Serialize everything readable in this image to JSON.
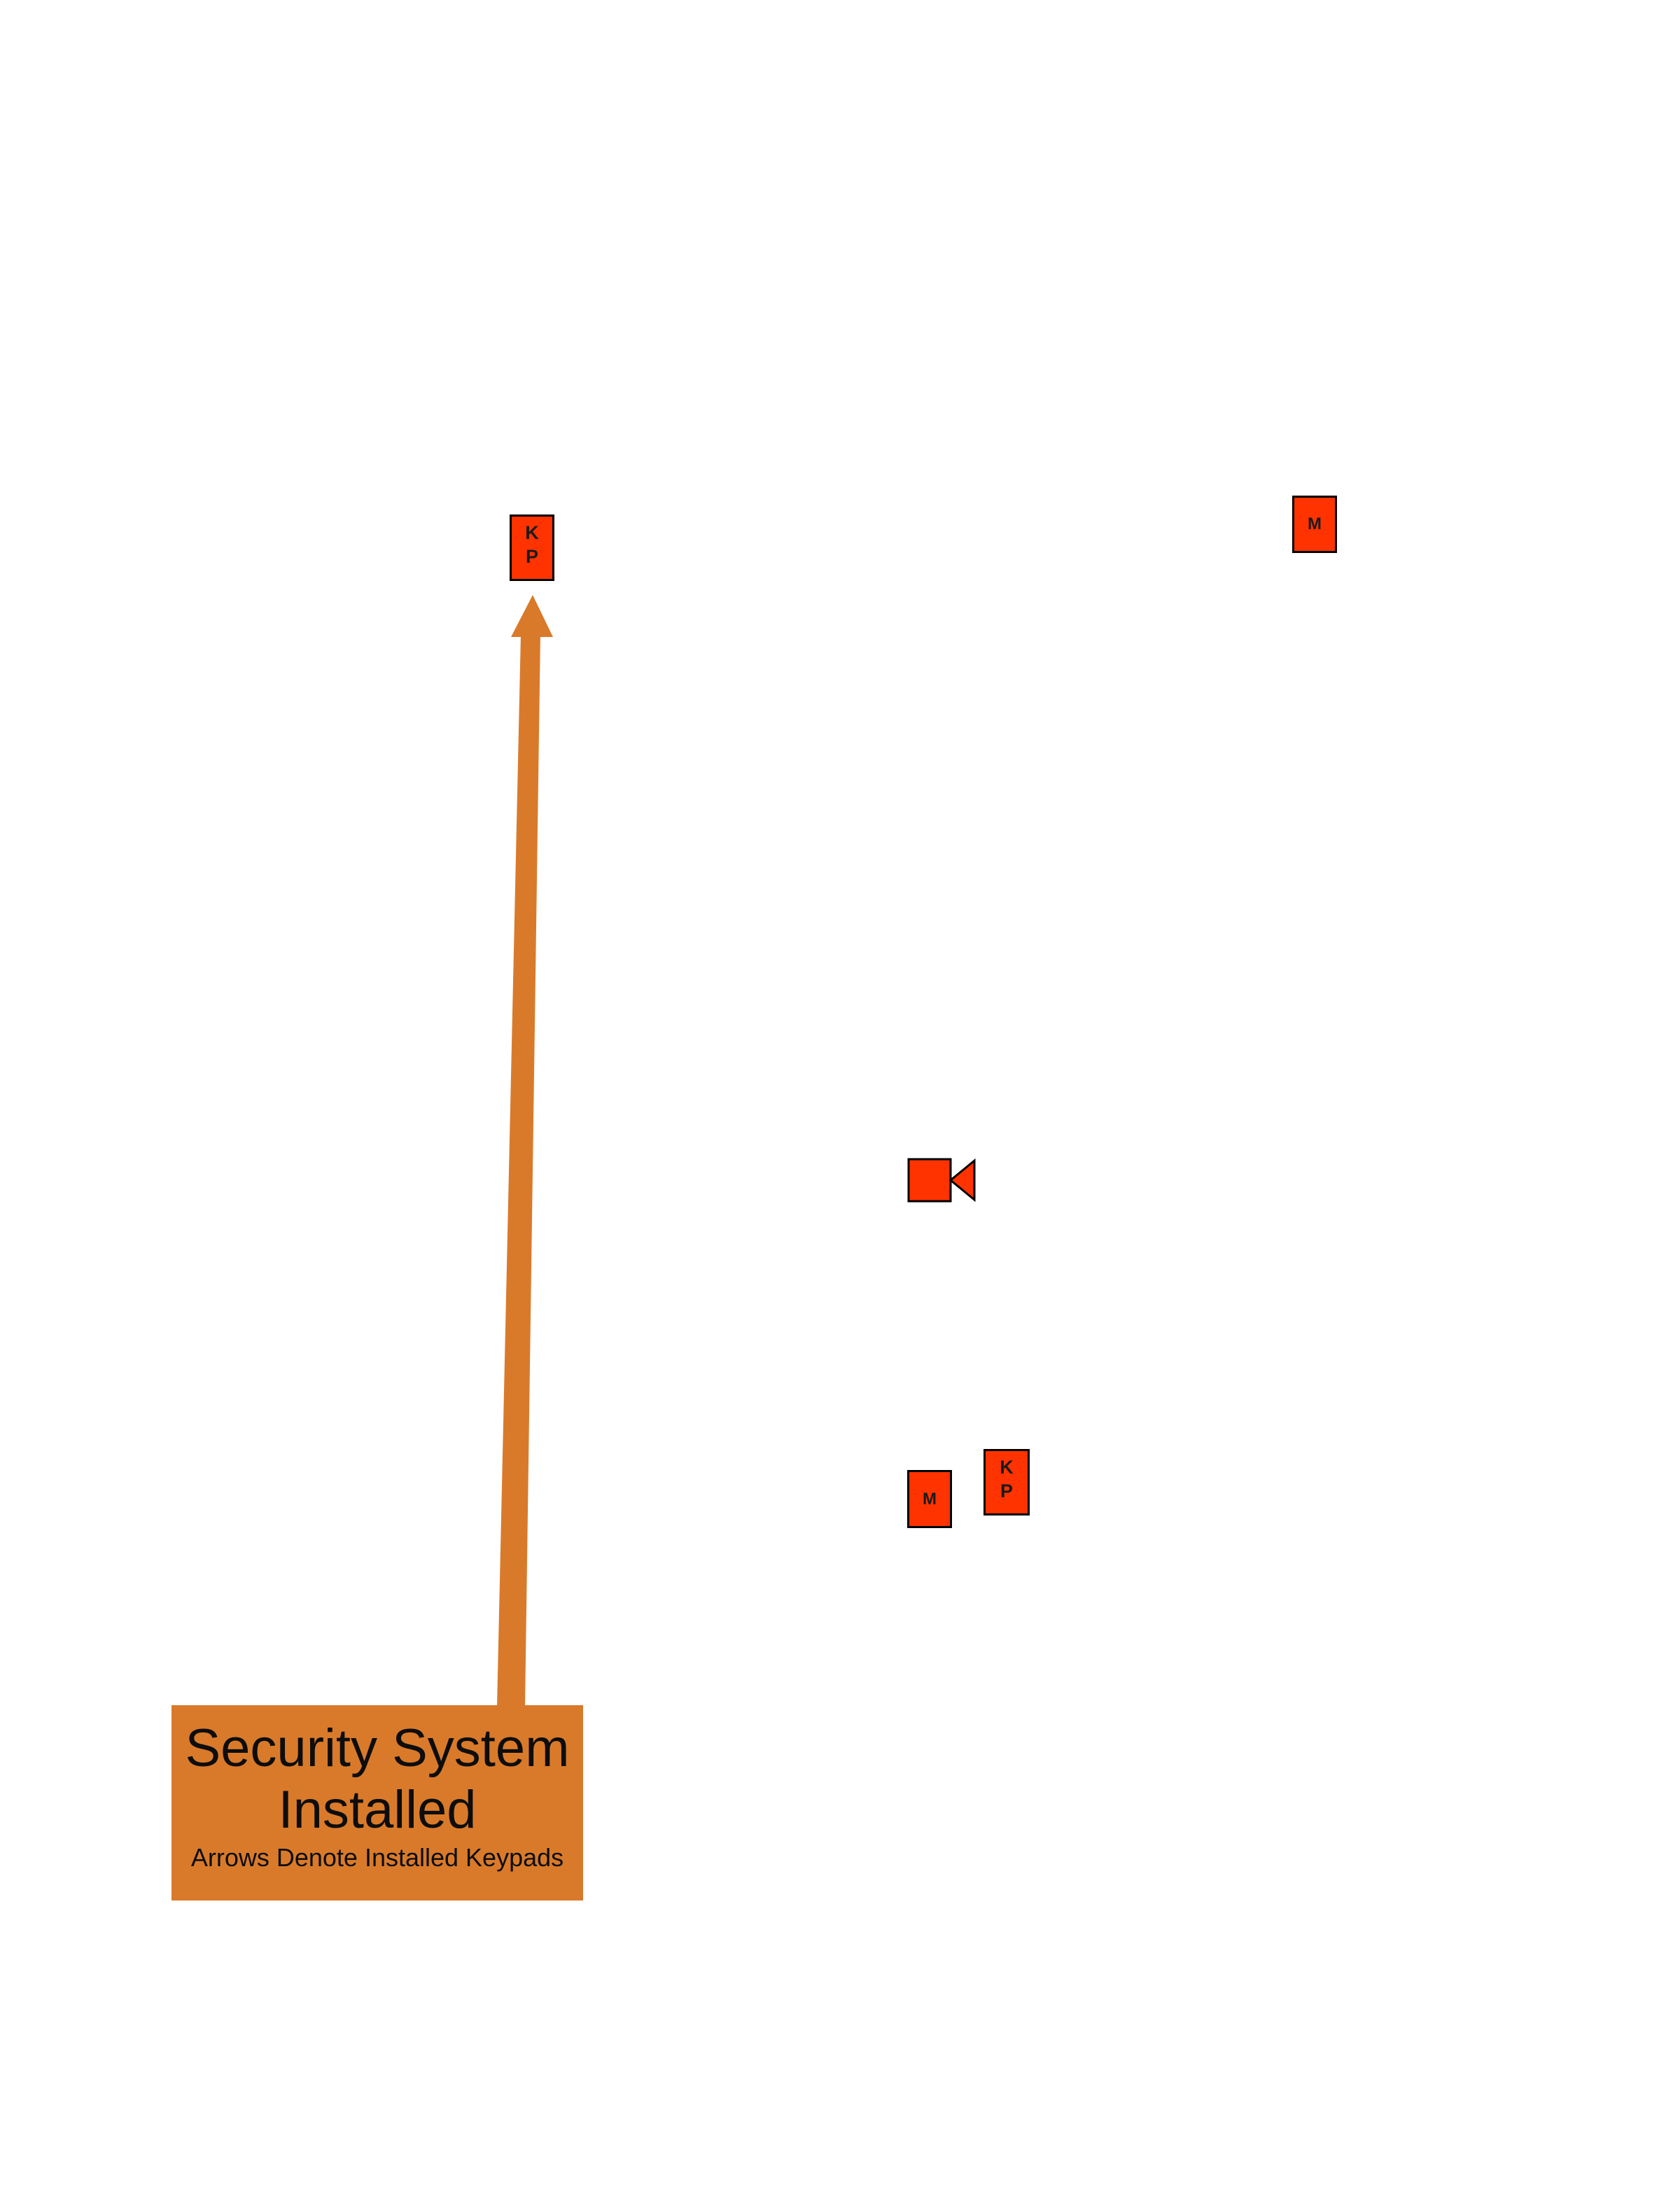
{
  "legend": {
    "title": "Security System Installed",
    "title_lines": [
      "Security System",
      "Installed"
    ],
    "subtitle": "Arrows Denote Installed Keypads"
  },
  "devices": {
    "keypad_label_lines": [
      "K",
      "P"
    ],
    "motion_label": "M"
  },
  "icons": {
    "keypad": "keypad-icon",
    "motion_sensor": "motion-sensor-icon",
    "camera": "camera-icon",
    "arrow": "arrow-icon"
  },
  "colors": {
    "device_fill": "#ff3300",
    "device_stroke": "#000000",
    "arrow": "#d97a2b",
    "legend_fill": "#d97a2b",
    "text": "#0d0d0d"
  }
}
